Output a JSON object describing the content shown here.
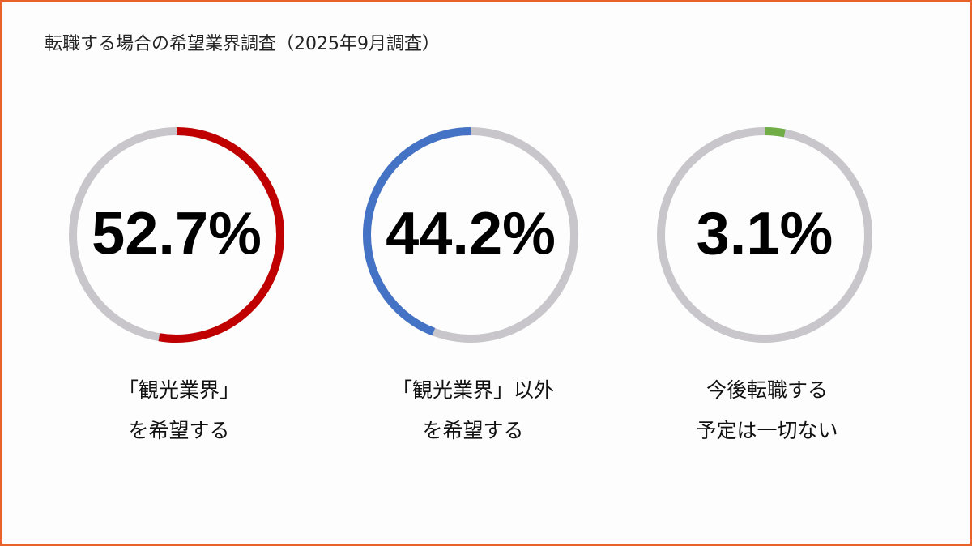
{
  "title": "転職する場合の希望業界調査（2025年9月調査）",
  "chart_data": [
    {
      "type": "donut",
      "values": [
        52.7
      ],
      "value_labels": [
        "52.7%"
      ],
      "ylim": [
        0,
        100
      ],
      "color": "#c00000",
      "track_color": "#c8c6ca",
      "direction": "clockwise",
      "label": [
        "「観光業界」",
        "を希望する"
      ]
    },
    {
      "type": "donut",
      "values": [
        44.2
      ],
      "value_labels": [
        "44.2%"
      ],
      "ylim": [
        0,
        100
      ],
      "color": "#4472c4",
      "track_color": "#c8c6ca",
      "direction": "counterclockwise",
      "label": [
        "「観光業界」以外",
        "を希望する"
      ]
    },
    {
      "type": "donut",
      "values": [
        3.1
      ],
      "value_labels": [
        "3.1%"
      ],
      "ylim": [
        0,
        100
      ],
      "color": "#70ad47",
      "track_color": "#c8c6ca",
      "direction": "clockwise",
      "label": [
        "今後転職する",
        "予定は一切ない"
      ]
    }
  ]
}
